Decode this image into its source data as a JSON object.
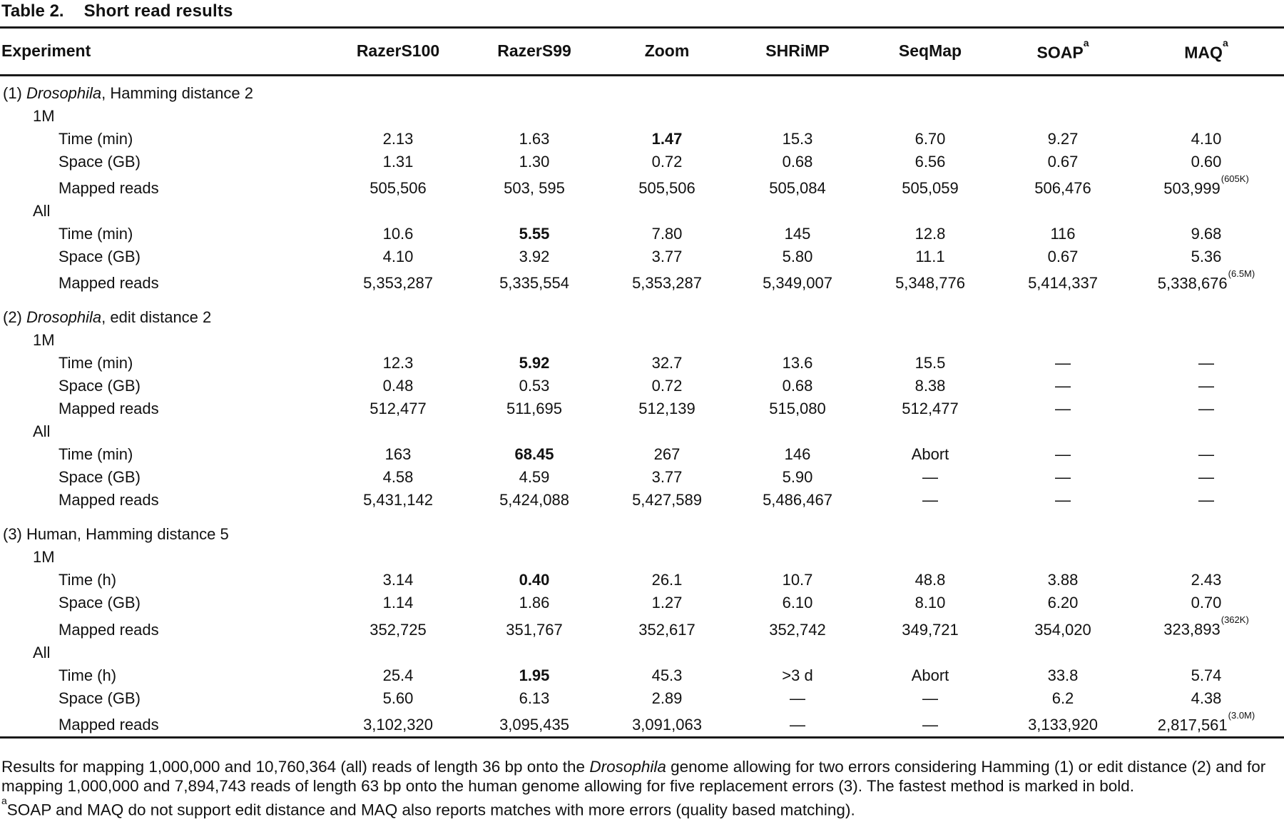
{
  "title": {
    "label": "Table 2.",
    "subtitle": "Short read results"
  },
  "columns": [
    "Experiment",
    {
      "text": "RazerS100"
    },
    {
      "text": "RazerS99"
    },
    {
      "text": "Zoom"
    },
    {
      "text": "SHRiMP"
    },
    {
      "text": "SeqMap"
    },
    {
      "text": "SOAP",
      "sup": "a"
    },
    {
      "text": "MAQ",
      "sup": "a"
    }
  ],
  "sections": [
    {
      "heading": {
        "prefix": "(1) ",
        "italic": "Drosophila",
        "suffix": ", Hamming distance 2"
      },
      "groups": [
        {
          "label": "1M",
          "rows": [
            {
              "label": "Time (min)",
              "values": [
                "2.13",
                "1.63",
                {
                  "text": "1.47",
                  "bold": true
                },
                "15.3",
                "6.70",
                "9.27",
                "4.10"
              ]
            },
            {
              "label": "Space (GB)",
              "values": [
                "1.31",
                "1.30",
                "0.72",
                "0.68",
                "6.56",
                "0.67",
                "0.60"
              ]
            },
            {
              "label": "Mapped reads",
              "values": [
                "505,506",
                "503, 595",
                "505,506",
                "505,084",
                "505,059",
                "506,476",
                {
                  "text": "503,999",
                  "sup": "(605K)"
                }
              ]
            }
          ]
        },
        {
          "label": "All",
          "rows": [
            {
              "label": "Time (min)",
              "values": [
                "10.6",
                {
                  "text": "5.55",
                  "bold": true
                },
                "7.80",
                "145",
                "12.8",
                "116",
                "9.68"
              ]
            },
            {
              "label": "Space (GB)",
              "values": [
                "4.10",
                "3.92",
                "3.77",
                "5.80",
                "11.1",
                "0.67",
                "5.36"
              ]
            },
            {
              "label": "Mapped reads",
              "values": [
                "5,353,287",
                "5,335,554",
                "5,353,287",
                "5,349,007",
                "5,348,776",
                "5,414,337",
                {
                  "text": "5,338,676",
                  "sup": "(6.5M)"
                }
              ]
            }
          ]
        }
      ]
    },
    {
      "heading": {
        "prefix": "(2) ",
        "italic": "Drosophila",
        "suffix": ", edit distance 2"
      },
      "groups": [
        {
          "label": "1M",
          "rows": [
            {
              "label": "Time (min)",
              "values": [
                "12.3",
                {
                  "text": "5.92",
                  "bold": true
                },
                "32.7",
                "13.6",
                "15.5",
                "—",
                "—"
              ]
            },
            {
              "label": "Space (GB)",
              "values": [
                "0.48",
                "0.53",
                "0.72",
                "0.68",
                "8.38",
                "—",
                "—"
              ]
            },
            {
              "label": "Mapped reads",
              "values": [
                "512,477",
                "511,695",
                "512,139",
                "515,080",
                "512,477",
                "—",
                "—"
              ]
            }
          ]
        },
        {
          "label": "All",
          "rows": [
            {
              "label": "Time (min)",
              "values": [
                "163",
                {
                  "text": "68.45",
                  "bold": true
                },
                "267",
                "146",
                "Abort",
                "—",
                "—"
              ]
            },
            {
              "label": "Space (GB)",
              "values": [
                "4.58",
                "4.59",
                "3.77",
                "5.90",
                "—",
                "—",
                "—"
              ]
            },
            {
              "label": "Mapped reads",
              "values": [
                "5,431,142",
                "5,424,088",
                "5,427,589",
                "5,486,467",
                "—",
                "—",
                "—"
              ]
            }
          ]
        }
      ]
    },
    {
      "heading": {
        "prefix": "(3) Human, Hamming distance 5",
        "italic": "",
        "suffix": ""
      },
      "groups": [
        {
          "label": "1M",
          "rows": [
            {
              "label": "Time (h)",
              "values": [
                "3.14",
                {
                  "text": "0.40",
                  "bold": true
                },
                "26.1",
                "10.7",
                "48.8",
                "3.88",
                "2.43"
              ]
            },
            {
              "label": "Space (GB)",
              "values": [
                "1.14",
                "1.86",
                "1.27",
                "6.10",
                "8.10",
                "6.20",
                "0.70"
              ]
            },
            {
              "label": "Mapped reads",
              "values": [
                "352,725",
                "351,767",
                "352,617",
                "352,742",
                "349,721",
                "354,020",
                {
                  "text": "323,893",
                  "sup": "(362K)"
                }
              ]
            }
          ]
        },
        {
          "label": "All",
          "rows": [
            {
              "label": "Time (h)",
              "values": [
                "25.4",
                {
                  "text": "1.95",
                  "bold": true
                },
                "45.3",
                ">3 d",
                "Abort",
                "33.8",
                "5.74"
              ]
            },
            {
              "label": "Space (GB)",
              "values": [
                "5.60",
                "6.13",
                "2.89",
                "—",
                "—",
                "6.2",
                "4.38"
              ]
            },
            {
              "label": "Mapped reads",
              "values": [
                "3,102,320",
                "3,095,435",
                "3,091,063",
                "—",
                "—",
                "3,133,920",
                {
                  "text": "2,817,561",
                  "sup": "(3.0M)"
                }
              ]
            }
          ]
        }
      ]
    }
  ],
  "footnotes": {
    "main_part1": "Results for mapping 1,000,000 and 10,760,364 (all) reads of length 36 bp onto the ",
    "main_italic": "Drosophila",
    "main_part2": " genome allowing for two errors considering Hamming (1) or edit distance (2) and for mapping 1,000,000 and 7,894,743 reads of length 63 bp onto the human genome allowing for five replacement errors (3). The fastest method is marked in bold.",
    "note_a_sup": "a",
    "note_a_text": "SOAP and MAQ do not support edit distance and MAQ also reports matches with more errors (quality based matching)."
  }
}
